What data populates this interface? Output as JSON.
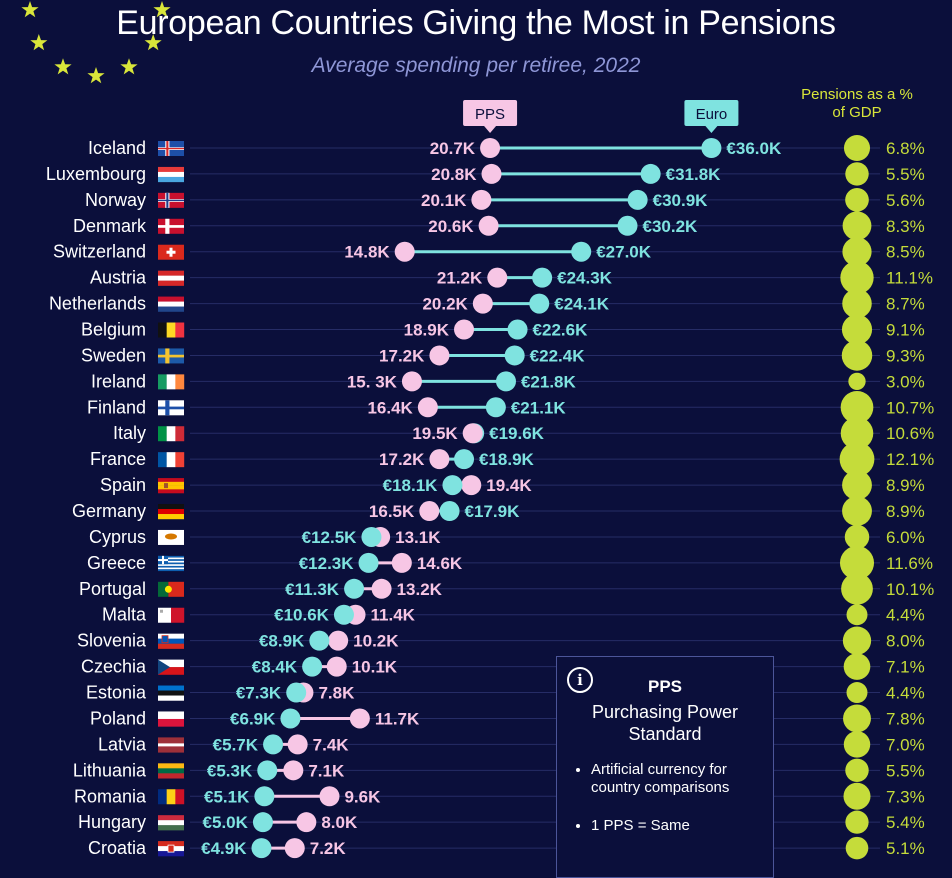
{
  "header": {
    "title": "European Countries Giving the Most in Pensions",
    "subtitle": "Average spending per retiree, 2022",
    "pps_tag": "PPS",
    "euro_tag": "Euro",
    "gdp_heading": "Pensions as a % of GDP"
  },
  "info_box": {
    "icon": "info-icon",
    "heading": "PPS",
    "subheading": "Purchasing Power Standard",
    "bullets": [
      "Artificial currency for country comparisons",
      "1 PPS = Same"
    ]
  },
  "colors": {
    "background": "#0b0f3b",
    "pps": "#f7c6e5",
    "euro": "#7fe3e0",
    "gdp": "#c5dc3a",
    "stars": "#d9e63a"
  },
  "chart_data": {
    "type": "dumbbell",
    "title": "European Countries Giving the Most in Pensions",
    "subtitle": "Average spending per retiree, 2022",
    "series": [
      {
        "name": "PPS",
        "unit": "thousand PPS"
      },
      {
        "name": "Euro",
        "unit": "thousand EUR"
      },
      {
        "name": "Pensions as a % of GDP",
        "unit": "%"
      }
    ],
    "rows": [
      {
        "country": "Iceland",
        "flag": "iceland-flag",
        "pps": 20.7,
        "euro": 36.0,
        "gdp": 6.8,
        "pps_label": "20.7K",
        "euro_label": "€36.0K",
        "gdp_label": "6.8%"
      },
      {
        "country": "Luxembourg",
        "flag": "luxembourg-flag",
        "pps": 20.8,
        "euro": 31.8,
        "gdp": 5.5,
        "pps_label": "20.8K",
        "euro_label": "€31.8K",
        "gdp_label": "5.5%"
      },
      {
        "country": "Norway",
        "flag": "norway-flag",
        "pps": 20.1,
        "euro": 30.9,
        "gdp": 5.6,
        "pps_label": "20.1K",
        "euro_label": "€30.9K",
        "gdp_label": "5.6%"
      },
      {
        "country": "Denmark",
        "flag": "denmark-flag",
        "pps": 20.6,
        "euro": 30.2,
        "gdp": 8.3,
        "pps_label": "20.6K",
        "euro_label": "€30.2K",
        "gdp_label": "8.3%"
      },
      {
        "country": "Switzerland",
        "flag": "switzerland-flag",
        "pps": 14.8,
        "euro": 27.0,
        "gdp": 8.5,
        "pps_label": "14.8K",
        "euro_label": "€27.0K",
        "gdp_label": "8.5%"
      },
      {
        "country": "Austria",
        "flag": "austria-flag",
        "pps": 21.2,
        "euro": 24.3,
        "gdp": 11.1,
        "pps_label": "21.2K",
        "euro_label": "€24.3K",
        "gdp_label": "11.1%"
      },
      {
        "country": "Netherlands",
        "flag": "netherlands-flag",
        "pps": 20.2,
        "euro": 24.1,
        "gdp": 8.7,
        "pps_label": "20.2K",
        "euro_label": "€24.1K",
        "gdp_label": "8.7%"
      },
      {
        "country": "Belgium",
        "flag": "belgium-flag",
        "pps": 18.9,
        "euro": 22.6,
        "gdp": 9.1,
        "pps_label": "18.9K",
        "euro_label": "€22.6K",
        "gdp_label": "9.1%"
      },
      {
        "country": "Sweden",
        "flag": "sweden-flag",
        "pps": 17.2,
        "euro": 22.4,
        "gdp": 9.3,
        "pps_label": "17.2K",
        "euro_label": "€22.4K",
        "gdp_label": "9.3%"
      },
      {
        "country": "Ireland",
        "flag": "ireland-flag",
        "pps": 15.3,
        "euro": 21.8,
        "gdp": 3.0,
        "pps_label": "15. 3K",
        "euro_label": "€21.8K",
        "gdp_label": "3.0%"
      },
      {
        "country": "Finland",
        "flag": "finland-flag",
        "pps": 16.4,
        "euro": 21.1,
        "gdp": 10.7,
        "pps_label": "16.4K",
        "euro_label": "€21.1K",
        "gdp_label": "10.7%"
      },
      {
        "country": "Italy",
        "flag": "italy-flag",
        "pps": 19.5,
        "euro": 19.6,
        "gdp": 10.6,
        "pps_label": "19.5K",
        "euro_label": "€19.6K",
        "gdp_label": "10.6%"
      },
      {
        "country": "France",
        "flag": "france-flag",
        "pps": 17.2,
        "euro": 18.9,
        "gdp": 12.1,
        "pps_label": "17.2K",
        "euro_label": "€18.9K",
        "gdp_label": "12.1%"
      },
      {
        "country": "Spain",
        "flag": "spain-flag",
        "pps": 19.4,
        "euro": 18.1,
        "gdp": 8.9,
        "pps_label": "19.4K",
        "euro_label": "€18.1K",
        "gdp_label": "8.9%"
      },
      {
        "country": "Germany",
        "flag": "germany-flag",
        "pps": 16.5,
        "euro": 17.9,
        "gdp": 8.9,
        "pps_label": "16.5K",
        "euro_label": "€17.9K",
        "gdp_label": "8.9%"
      },
      {
        "country": "Cyprus",
        "flag": "cyprus-flag",
        "pps": 13.1,
        "euro": 12.5,
        "gdp": 6.0,
        "pps_label": "13.1K",
        "euro_label": "€12.5K",
        "gdp_label": "6.0%"
      },
      {
        "country": "Greece",
        "flag": "greece-flag",
        "pps": 14.6,
        "euro": 12.3,
        "gdp": 11.6,
        "pps_label": "14.6K",
        "euro_label": "€12.3K",
        "gdp_label": "11.6%"
      },
      {
        "country": "Portugal",
        "flag": "portugal-flag",
        "pps": 13.2,
        "euro": 11.3,
        "gdp": 10.1,
        "pps_label": "13.2K",
        "euro_label": "€11.3K",
        "gdp_label": "10.1%"
      },
      {
        "country": "Malta",
        "flag": "malta-flag",
        "pps": 11.4,
        "euro": 10.6,
        "gdp": 4.4,
        "pps_label": "11.4K",
        "euro_label": "€10.6K",
        "gdp_label": "4.4%"
      },
      {
        "country": "Slovenia",
        "flag": "slovenia-flag",
        "pps": 10.2,
        "euro": 8.9,
        "gdp": 8.0,
        "pps_label": "10.2K",
        "euro_label": "€8.9K",
        "gdp_label": "8.0%"
      },
      {
        "country": "Czechia",
        "flag": "czechia-flag",
        "pps": 10.1,
        "euro": 8.4,
        "gdp": 7.1,
        "pps_label": "10.1K",
        "euro_label": "€8.4K",
        "gdp_label": "7.1%"
      },
      {
        "country": "Estonia",
        "flag": "estonia-flag",
        "pps": 7.8,
        "euro": 7.3,
        "gdp": 4.4,
        "pps_label": "7.8K",
        "euro_label": "€7.3K",
        "gdp_label": "4.4%"
      },
      {
        "country": "Poland",
        "flag": "poland-flag",
        "pps": 11.7,
        "euro": 6.9,
        "gdp": 7.8,
        "pps_label": "11.7K",
        "euro_label": "€6.9K",
        "gdp_label": "7.8%"
      },
      {
        "country": "Latvia",
        "flag": "latvia-flag",
        "pps": 7.4,
        "euro": 5.7,
        "gdp": 7.0,
        "pps_label": "7.4K",
        "euro_label": "€5.7K",
        "gdp_label": "7.0%"
      },
      {
        "country": "Lithuania",
        "flag": "lithuania-flag",
        "pps": 7.1,
        "euro": 5.3,
        "gdp": 5.5,
        "pps_label": "7.1K",
        "euro_label": "€5.3K",
        "gdp_label": "5.5%"
      },
      {
        "country": "Romania",
        "flag": "romania-flag",
        "pps": 9.6,
        "euro": 5.1,
        "gdp": 7.3,
        "pps_label": "9.6K",
        "euro_label": "€5.1K",
        "gdp_label": "7.3%"
      },
      {
        "country": "Hungary",
        "flag": "hungary-flag",
        "pps": 8.0,
        "euro": 5.0,
        "gdp": 5.4,
        "pps_label": "8.0K",
        "euro_label": "€5.0K",
        "gdp_label": "5.4%"
      },
      {
        "country": "Croatia",
        "flag": "croatia-flag",
        "pps": 7.2,
        "euro": 4.9,
        "gdp": 5.1,
        "pps_label": "7.2K",
        "euro_label": "€4.9K",
        "gdp_label": "5.1%"
      }
    ]
  }
}
